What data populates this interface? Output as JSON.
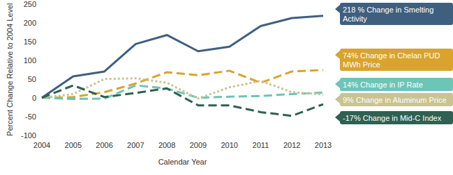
{
  "chart_data": {
    "type": "line",
    "x_label": "Calendar Year",
    "y_label": "Percent Change Relative to 2004 Level",
    "categories": [
      "2004",
      "2005",
      "2006",
      "2007",
      "2008",
      "2009",
      "2010",
      "2011",
      "2012",
      "2013"
    ],
    "series": [
      {
        "name": "218 % Change in Smelting Activity",
        "color": "#3f5f7f",
        "line_style": "solid",
        "values": [
          0,
          57,
          70,
          143,
          167,
          124,
          136,
          191,
          212,
          218
        ]
      },
      {
        "name": "74% Change in Chelan PUD MWh Price",
        "color": "#d9a32e",
        "line_style": "dashed",
        "values": [
          0,
          2,
          15,
          38,
          68,
          60,
          72,
          40,
          70,
          74
        ]
      },
      {
        "name": "14% Change in IP Rate",
        "color": "#6cc5b5",
        "line_style": "dashed",
        "values": [
          0,
          -3,
          -2,
          33,
          25,
          0,
          3,
          5,
          10,
          14
        ]
      },
      {
        "name": "9% Change in Aluminum Price",
        "color": "#c9c391",
        "line_style": "dotted",
        "values": [
          0,
          10,
          50,
          52,
          40,
          -2,
          28,
          45,
          15,
          9
        ]
      },
      {
        "name": "-17% Change in Mid-C Index",
        "color": "#2e6152",
        "line_style": "dashed",
        "values": [
          0,
          33,
          2,
          13,
          25,
          -20,
          -20,
          -38,
          -48,
          -17
        ]
      }
    ],
    "ylim": [
      -100,
      250
    ],
    "yticks": [
      -100,
      -50,
      0,
      50,
      100,
      150,
      200,
      250
    ],
    "grid": false
  }
}
